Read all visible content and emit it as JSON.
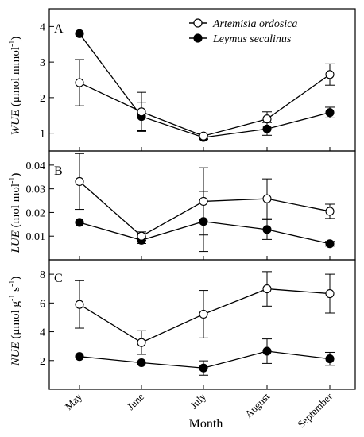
{
  "chart_data": {
    "type": "line",
    "xlabel": "Month",
    "categories": [
      "May",
      "June",
      "July",
      "August",
      "September"
    ],
    "legend": {
      "placement": "top-right",
      "entries": [
        {
          "name": "Artemisia ordosica",
          "marker": "open-circle"
        },
        {
          "name": "Leymus secalinus",
          "marker": "filled-circle"
        }
      ]
    },
    "panels": [
      {
        "letter": "A",
        "ylabel_main": "WUE",
        "ylabel_unit_open": " (μmol mmol",
        "ylabel_sup": "-1",
        "ylabel_unit_close": ")",
        "ylim": [
          0.5,
          4.5
        ],
        "yticks": [
          1,
          2,
          3,
          4
        ],
        "ytick_labels": [
          "1",
          "2",
          "3",
          "4"
        ],
        "series": [
          {
            "name": "Artemisia ordosica",
            "values": [
              2.42,
              1.6,
              0.92,
              1.4,
              2.65
            ],
            "errors": [
              0.65,
              0.55,
              0.08,
              0.2,
              0.3
            ]
          },
          {
            "name": "Leymus secalinus",
            "values": [
              3.8,
              1.47,
              0.88,
              1.12,
              1.58
            ],
            "errors": [
              0.0,
              0.4,
              0.06,
              0.18,
              0.15
            ]
          }
        ]
      },
      {
        "letter": "B",
        "ylabel_main": "LUE",
        "ylabel_unit_open": " (mol mol",
        "ylabel_sup": "-1",
        "ylabel_unit_close": ")",
        "ylim": [
          0.0,
          0.046
        ],
        "yticks": [
          0.01,
          0.02,
          0.03,
          0.04
        ],
        "ytick_labels": [
          "0.01",
          "0.02",
          "0.03",
          "0.04"
        ],
        "series": [
          {
            "name": "Artemisia ordosica",
            "values": [
              0.0331,
              0.01,
              0.0247,
              0.0258,
              0.0205
            ],
            "errors": [
              0.0118,
              0.0018,
              0.0142,
              0.0084,
              0.003
            ]
          },
          {
            "name": "Leymus secalinus",
            "values": [
              0.0158,
              0.0083,
              0.0162,
              0.0128,
              0.0068
            ],
            "errors": [
              0.0,
              0.0014,
              0.0127,
              0.0042,
              0.001
            ]
          }
        ]
      },
      {
        "letter": "C",
        "ylabel_main": "NUE",
        "ylabel_unit_open": " (μmol g",
        "ylabel_sup": "-1",
        "ylabel_unit_mid": " s",
        "ylabel_sup2": "-1",
        "ylabel_unit_close": ")",
        "ylim": [
          0.0,
          9.0
        ],
        "yticks": [
          2,
          4,
          6,
          8
        ],
        "ytick_labels": [
          "2",
          "4",
          "6",
          "8"
        ],
        "series": [
          {
            "name": "Artemisia ordosica",
            "values": [
              5.9,
              3.25,
              5.22,
              6.98,
              6.65
            ],
            "errors": [
              1.65,
              0.82,
              1.65,
              1.2,
              1.35
            ]
          },
          {
            "name": "Leymus secalinus",
            "values": [
              2.28,
              1.85,
              1.48,
              2.65,
              2.12
            ],
            "errors": [
              0.0,
              0.0,
              0.5,
              0.85,
              0.45
            ]
          }
        ]
      }
    ]
  }
}
